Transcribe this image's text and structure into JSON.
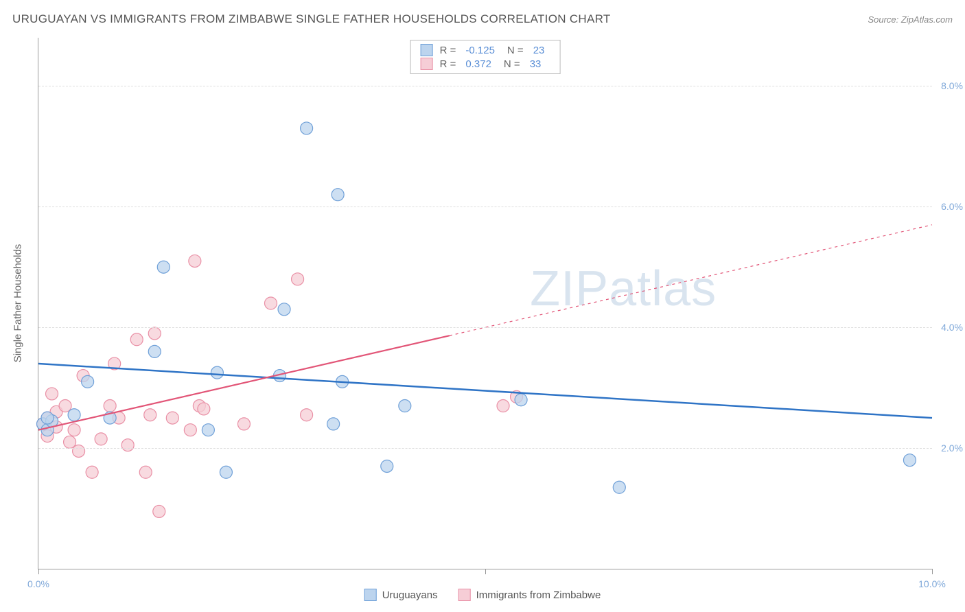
{
  "title": "URUGUAYAN VS IMMIGRANTS FROM ZIMBABWE SINGLE FATHER HOUSEHOLDS CORRELATION CHART",
  "source": "Source: ZipAtlas.com",
  "y_axis_label": "Single Father Households",
  "watermark_a": "ZIP",
  "watermark_b": "atlas",
  "chart": {
    "type": "scatter",
    "xlim": [
      0,
      10
    ],
    "ylim": [
      0,
      8.8
    ],
    "x_ticks": [
      0,
      5,
      10
    ],
    "x_tick_labels": [
      "0.0%",
      "",
      "10.0%"
    ],
    "y_ticks": [
      2,
      4,
      6,
      8
    ],
    "y_tick_labels": [
      "2.0%",
      "4.0%",
      "6.0%",
      "8.0%"
    ],
    "background_color": "#ffffff",
    "grid_color": "#e0e0e0",
    "series": [
      {
        "id": "uruguay",
        "label": "Uruguayans",
        "color_fill": "#bcd4ee",
        "color_stroke": "#6fa0d8",
        "marker_size": 9,
        "R": "-0.125",
        "N": "23",
        "trend": {
          "y_at_x0": 3.4,
          "y_at_x10": 2.5,
          "color": "#2f74c6",
          "width": 2.5,
          "dash": "none"
        },
        "points": [
          [
            0.05,
            2.4
          ],
          [
            0.1,
            2.3
          ],
          [
            0.15,
            2.45
          ],
          [
            0.4,
            2.55
          ],
          [
            0.55,
            3.1
          ],
          [
            0.8,
            2.5
          ],
          [
            1.3,
            3.6
          ],
          [
            1.4,
            5.0
          ],
          [
            1.9,
            2.3
          ],
          [
            2.0,
            3.25
          ],
          [
            2.1,
            1.6
          ],
          [
            2.7,
            3.2
          ],
          [
            2.75,
            4.3
          ],
          [
            3.0,
            7.3
          ],
          [
            3.3,
            2.4
          ],
          [
            3.35,
            6.2
          ],
          [
            3.4,
            3.1
          ],
          [
            3.9,
            1.7
          ],
          [
            4.1,
            2.7
          ],
          [
            5.4,
            2.8
          ],
          [
            6.5,
            1.35
          ],
          [
            9.75,
            1.8
          ],
          [
            0.1,
            2.5
          ]
        ]
      },
      {
        "id": "zimbabwe",
        "label": "Immigrants from Zimbabwe",
        "color_fill": "#f6cdd6",
        "color_stroke": "#e98fa5",
        "marker_size": 9,
        "R": "0.372",
        "N": "33",
        "trend": {
          "y_at_x0": 2.3,
          "y_at_x10": 5.7,
          "color": "#e25577",
          "width": 2.2,
          "dash": "none",
          "solid_until_x": 4.6,
          "dash_after": true
        },
        "points": [
          [
            0.05,
            2.4
          ],
          [
            0.1,
            2.5
          ],
          [
            0.1,
            2.2
          ],
          [
            0.15,
            2.9
          ],
          [
            0.2,
            2.6
          ],
          [
            0.2,
            2.35
          ],
          [
            0.3,
            2.7
          ],
          [
            0.35,
            2.1
          ],
          [
            0.4,
            2.3
          ],
          [
            0.45,
            1.95
          ],
          [
            0.5,
            3.2
          ],
          [
            0.6,
            1.6
          ],
          [
            0.7,
            2.15
          ],
          [
            0.8,
            2.7
          ],
          [
            0.85,
            3.4
          ],
          [
            0.9,
            2.5
          ],
          [
            1.0,
            2.05
          ],
          [
            1.1,
            3.8
          ],
          [
            1.2,
            1.6
          ],
          [
            1.25,
            2.55
          ],
          [
            1.3,
            3.9
          ],
          [
            1.35,
            0.95
          ],
          [
            1.5,
            2.5
          ],
          [
            1.7,
            2.3
          ],
          [
            1.75,
            5.1
          ],
          [
            1.8,
            2.7
          ],
          [
            1.85,
            2.65
          ],
          [
            2.3,
            2.4
          ],
          [
            2.6,
            4.4
          ],
          [
            2.9,
            4.8
          ],
          [
            3.0,
            2.55
          ],
          [
            5.2,
            2.7
          ],
          [
            5.35,
            2.85
          ]
        ]
      }
    ]
  },
  "corr_box_labels": {
    "R": "R =",
    "N": "N ="
  }
}
